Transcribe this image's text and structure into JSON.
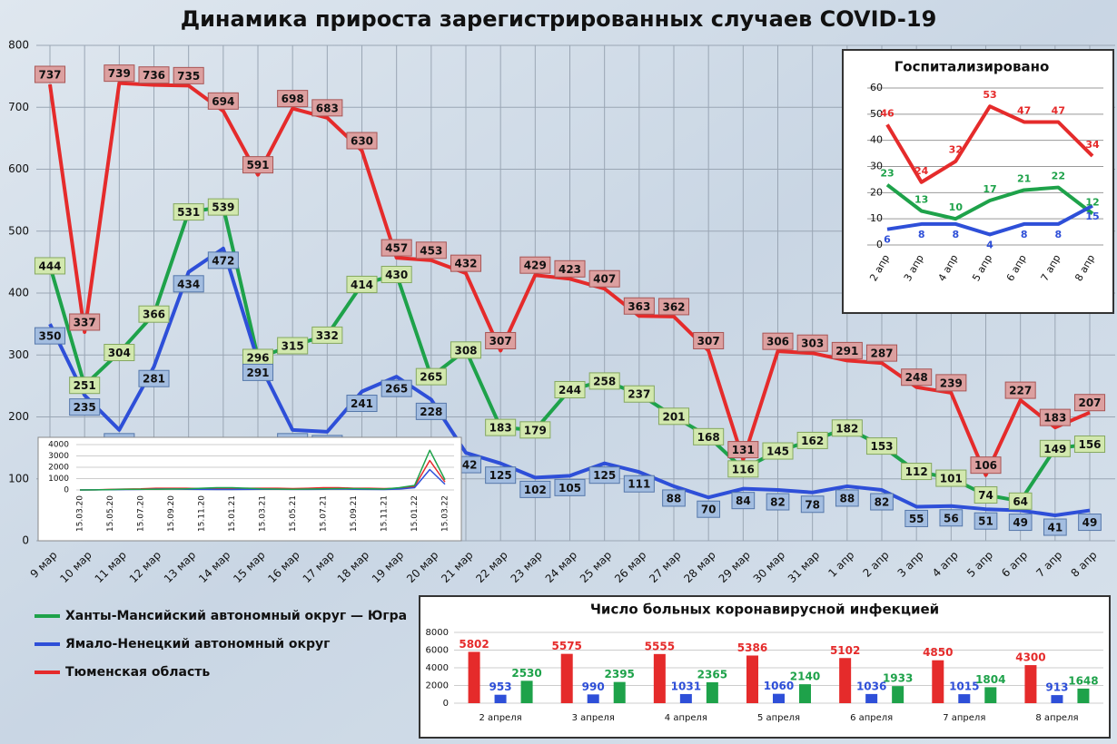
{
  "chart_data": [
    {
      "type": "line",
      "title": "Динамика прироста зарегистрированных случаев COVID-19",
      "categories": [
        "9 мар",
        "10 мар",
        "11 мар",
        "12 мар",
        "13 мар",
        "14 мар",
        "15 мар",
        "16 мар",
        "17 мар",
        "18 мар",
        "19 мар",
        "20 мар",
        "21 мар",
        "22 мар",
        "23 мар",
        "24 мар",
        "25 мар",
        "26 мар",
        "27 мар",
        "28 мар",
        "29 мар",
        "30 мар",
        "31 мар",
        "1 апр",
        "2 апр",
        "3 апр",
        "4 апр",
        "5 апр",
        "6 апр",
        "7 апр",
        "8 апр"
      ],
      "series": [
        {
          "name": "Ханты-Мансийский автономный округ — Югра",
          "color": "#1ea24a",
          "values": [
            444,
            251,
            304,
            366,
            531,
            539,
            296,
            315,
            332,
            414,
            430,
            265,
            308,
            183,
            179,
            244,
            258,
            237,
            201,
            168,
            116,
            145,
            162,
            182,
            153,
            112,
            101,
            74,
            64,
            149,
            156
          ]
        },
        {
          "name": "Ямало-Ненецкий автономный округ",
          "color": "#2e4fd8",
          "values": [
            350,
            235,
            179,
            281,
            434,
            472,
            291,
            179,
            176,
            241,
            265,
            228,
            142,
            125,
            102,
            105,
            125,
            111,
            88,
            70,
            84,
            82,
            78,
            88,
            82,
            55,
            56,
            51,
            49,
            41,
            49
          ]
        },
        {
          "name": "Тюменская область",
          "color": "#e52b2b",
          "values": [
            737,
            337,
            739,
            736,
            735,
            694,
            591,
            698,
            683,
            630,
            457,
            453,
            432,
            307,
            429,
            423,
            407,
            363,
            362,
            307,
            131,
            306,
            303,
            291,
            287,
            248,
            239,
            106,
            227,
            183,
            207
          ]
        }
      ],
      "ylim": [
        0,
        800
      ],
      "yticks": [
        0,
        100,
        200,
        300,
        400,
        500,
        600,
        700,
        800
      ],
      "grid": true,
      "legend": "lower left"
    },
    {
      "type": "line",
      "title": "Госпитализировано",
      "categories": [
        "2 апр",
        "3 апр",
        "4 апр",
        "5 апр",
        "6 апр",
        "7 апр",
        "8 апр"
      ],
      "series": [
        {
          "color": "#e52b2b",
          "values": [
            46,
            24,
            32,
            53,
            47,
            47,
            34
          ]
        },
        {
          "color": "#1ea24a",
          "values": [
            23,
            13,
            10,
            17,
            21,
            22,
            12
          ]
        },
        {
          "color": "#2e4fd8",
          "values": [
            6,
            8,
            8,
            4,
            8,
            8,
            15
          ]
        }
      ],
      "ylim": [
        0,
        60
      ],
      "yticks": [
        0,
        10,
        20,
        30,
        40,
        50,
        60
      ],
      "grid": true
    },
    {
      "type": "bar",
      "title": "Число больных  коронавирусной  инфекцией",
      "categories": [
        "2 апреля",
        "3 апреля",
        "4 апреля",
        "5 апреля",
        "6 апреля",
        "7 апреля",
        "8 апреля"
      ],
      "series": [
        {
          "color": "#e52b2b",
          "values": [
            5802,
            5575,
            5555,
            5386,
            5102,
            4850,
            4300
          ]
        },
        {
          "color": "#2e4fd8",
          "values": [
            953,
            990,
            1031,
            1060,
            1036,
            1015,
            913
          ]
        },
        {
          "color": "#1ea24a",
          "values": [
            2530,
            2395,
            2365,
            2140,
            1933,
            1804,
            1648
          ]
        }
      ],
      "ylim": [
        0,
        8000
      ],
      "yticks": [
        0,
        2000,
        4000,
        6000,
        8000
      ],
      "grid": true
    },
    {
      "type": "line",
      "categories": [
        "15.03.20",
        null,
        "15.05.20",
        null,
        "15.07.20",
        null,
        "15.09.20",
        null,
        "15.11.20",
        null,
        "15.01.21",
        null,
        "15.03.21",
        null,
        "15.05.21",
        null,
        "15.07.21",
        null,
        "15.09.21",
        null,
        "15.11.21",
        null,
        "15.01.22",
        null,
        "15.03.22"
      ],
      "series": [
        {
          "color": "#e52b2b",
          "values": [
            0,
            10,
            50,
            80,
            100,
            150,
            150,
            150,
            120,
            100,
            120,
            150,
            150,
            150,
            120,
            150,
            200,
            200,
            150,
            150,
            120,
            150,
            300,
            2600,
            700
          ]
        },
        {
          "color": "#2e4fd8",
          "values": [
            0,
            10,
            20,
            40,
            50,
            80,
            80,
            60,
            50,
            40,
            40,
            50,
            60,
            60,
            50,
            50,
            60,
            80,
            60,
            50,
            40,
            80,
            200,
            1800,
            500
          ]
        },
        {
          "color": "#1ea24a",
          "values": [
            0,
            10,
            30,
            60,
            60,
            60,
            80,
            100,
            150,
            200,
            200,
            150,
            100,
            80,
            60,
            80,
            100,
            120,
            120,
            100,
            80,
            200,
            400,
            3500,
            900
          ]
        }
      ],
      "ylim": [
        0,
        4000
      ],
      "yticks": [
        0,
        1000,
        2000,
        3000,
        4000
      ],
      "grid": true
    }
  ]
}
